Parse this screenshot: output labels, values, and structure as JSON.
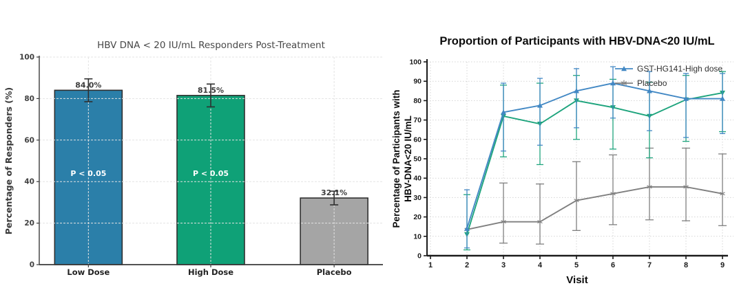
{
  "page": {
    "background": "#ffffff"
  },
  "chart_data": [
    {
      "id": "bar_chart",
      "type": "bar",
      "title": "HBV DNA < 20 IU/mL Responders Post-Treatment",
      "ylabel": "Percentage of Responders (%)",
      "ylim": [
        0,
        100
      ],
      "yticks": [
        0,
        20,
        40,
        60,
        80,
        100
      ],
      "categories": [
        "Low Dose",
        "High Dose",
        "Placebo"
      ],
      "values": [
        84.0,
        81.5,
        32.1
      ],
      "value_labels": [
        "84.0%",
        "81.5%",
        "32.1%"
      ],
      "errors": [
        5.5,
        5.5,
        3.3
      ],
      "bar_annotations": [
        "P < 0.05",
        "P < 0.05",
        null
      ],
      "bar_colors": [
        "#2b7fa9",
        "#0fa177",
        "#a5a5a5"
      ],
      "bar_edge_color": "#2f2f2f",
      "error_color": "#2f2f2f",
      "grid": true,
      "legend": []
    },
    {
      "id": "line_chart",
      "type": "line",
      "title": "Proportion of Participants with HBV-DNA<20 IU/mL",
      "xlabel": "Visit",
      "ylabel_lines": [
        "Percentage of Participants with",
        "HBV-DNA<20 IU/mL"
      ],
      "xlim": [
        1,
        9
      ],
      "ylim": [
        0,
        100
      ],
      "xticks": [
        1,
        2,
        3,
        4,
        5,
        6,
        7,
        8,
        9
      ],
      "yticks": [
        0,
        10,
        20,
        30,
        40,
        50,
        60,
        70,
        80,
        90,
        100
      ],
      "grid": true,
      "legend_position": "upper right",
      "legend": [
        "GST-HG141-High dose",
        "Placebo"
      ],
      "x": [
        2,
        3,
        4,
        5,
        6,
        7,
        8,
        9
      ],
      "series": [
        {
          "name": "Placebo",
          "in_legend": true,
          "color": "#7f7f7f",
          "marker": "star",
          "values": [
            13.5,
            17.5,
            17.5,
            28.5,
            32,
            35.5,
            35.5,
            32
          ],
          "err_lo": [
            null,
            6.5,
            6,
            13,
            16,
            18.5,
            18,
            15.5
          ],
          "err_hi": [
            null,
            37.5,
            37,
            48.5,
            52,
            55.5,
            55.5,
            52.5
          ]
        },
        {
          "name": "",
          "in_legend": false,
          "color": "#1ea47d",
          "marker": "triangle-down",
          "values": [
            11,
            72,
            68,
            80,
            76.5,
            72,
            80.5,
            84
          ],
          "err_lo": [
            3,
            51,
            47,
            60,
            55,
            50.5,
            59,
            64
          ],
          "err_hi": [
            31.5,
            88,
            89,
            93,
            91,
            89.5,
            93,
            95
          ]
        },
        {
          "name": "GST-HG141-High dose",
          "in_legend": true,
          "color": "#4288c4",
          "marker": "triangle-up",
          "values": [
            14,
            74,
            77.5,
            85,
            89,
            85,
            81,
            81
          ],
          "err_lo": [
            4,
            54,
            57,
            66,
            71,
            64.5,
            61,
            63
          ],
          "err_hi": [
            34,
            89,
            91.5,
            96.5,
            97.5,
            95,
            94,
            94
          ]
        }
      ]
    }
  ]
}
